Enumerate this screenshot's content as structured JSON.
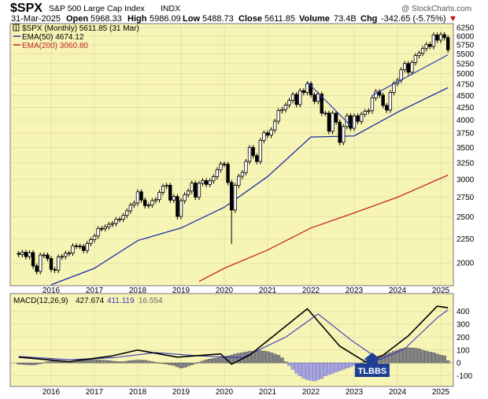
{
  "header": {
    "symbol": "$SPX",
    "name": "S&P 500 Large Cap Index",
    "exchange": "INDX",
    "watermark": "@ StockCharts.com",
    "date": "31-Mar-2025",
    "open_label": "Open",
    "open": "5968.33",
    "high_label": "High",
    "high": "5986.09",
    "low_label": "Low",
    "low": "5488.73",
    "close_label": "Close",
    "close": "5611.85",
    "volume_label": "Volume",
    "volume": "73.4B",
    "chg_label": "Chg",
    "chg": "-342.65 (-5.75%)",
    "chg_arrow": "▼"
  },
  "legend": {
    "price": "$SPX (Monthly) 5611.85 (31 Mar)",
    "ema50": "EMA(50) 4674.12",
    "ema200": "EMA(200) 3060.80"
  },
  "macd_panel": {
    "label": "MACD(12,26,9)",
    "macd": "427.674",
    "signal": "411.119",
    "hist": "16.554",
    "annotation": "TLBBS"
  },
  "colors": {
    "panel_bg": "#f7f5b5",
    "ema50": "#1c2ca8",
    "ema200": "#c42424",
    "trendline": "#2b3cb8",
    "macd_line": "#000000",
    "signal_line": "#3b36c0",
    "hist_bar": "#858585",
    "hist_highlight": "#a9a6de",
    "annotation_bg": "#1f3f95",
    "down_arrow": "#cc0000"
  },
  "chart_data": [
    {
      "type": "candlestick",
      "title": "$SPX S&P 500 Large Cap Index INDX",
      "y_scale": "log",
      "ylim": [
        1820,
        6300
      ],
      "y_ticks": [
        2000,
        2250,
        2500,
        2750,
        3000,
        3250,
        3500,
        3750,
        4000,
        4250,
        4500,
        4750,
        5000,
        5250,
        5500,
        5750,
        6000,
        6250
      ],
      "x_ticks": [
        "2016",
        "2017",
        "2018",
        "2019",
        "2020",
        "2021",
        "2022",
        "2023",
        "2024",
        "2025"
      ],
      "x_start": "2015-04",
      "closes": [
        2085,
        2107,
        2063,
        2104,
        1972,
        1920,
        2079,
        2080,
        2044,
        1940,
        1932,
        2060,
        2065,
        2097,
        2099,
        2174,
        2171,
        2168,
        2126,
        2199,
        2239,
        2279,
        2364,
        2363,
        2384,
        2412,
        2423,
        2470,
        2472,
        2519,
        2575,
        2648,
        2674,
        2823,
        2714,
        2641,
        2648,
        2705,
        2718,
        2816,
        2902,
        2914,
        2712,
        2760,
        2506,
        2704,
        2784,
        2834,
        2946,
        2752,
        2942,
        2980,
        2926,
        2977,
        3038,
        3141,
        3231,
        3226,
        2954,
        2585,
        2912,
        3044,
        3100,
        3271,
        3500,
        3363,
        3270,
        3622,
        3756,
        3714,
        3811,
        3973,
        4181,
        4204,
        4298,
        4395,
        4523,
        4308,
        4605,
        4567,
        4766,
        4516,
        4374,
        4530,
        4132,
        4132,
        3785,
        4130,
        3955,
        3586,
        3872,
        4080,
        3840,
        4077,
        3970,
        4109,
        4169,
        4180,
        4450,
        4589,
        4508,
        4288,
        4194,
        4568,
        4770,
        4846,
        5096,
        5254,
        5036,
        5278,
        5460,
        5522,
        5648,
        5762,
        5705,
        6032,
        5882,
        6041,
        5955,
        5612
      ],
      "series": [
        {
          "name": "$SPX (Monthly)",
          "last": 5611.85
        },
        {
          "name": "EMA(50)",
          "last": 4674.12,
          "x": [
            "2016-01",
            "2017-01",
            "2018-01",
            "2019-01",
            "2020-01",
            "2021-01",
            "2022-01",
            "2023-01",
            "2024-01",
            "2025-03"
          ],
          "values": [
            1800,
            1950,
            2230,
            2370,
            2620,
            3040,
            3680,
            3700,
            4150,
            4674
          ]
        },
        {
          "name": "EMA(200)",
          "last": 3060.8,
          "x": [
            "2019-06",
            "2020-01",
            "2021-01",
            "2022-01",
            "2023-01",
            "2024-01",
            "2025-03"
          ],
          "values": [
            1830,
            1950,
            2130,
            2370,
            2550,
            2750,
            3061
          ]
        }
      ],
      "trendlines": [
        {
          "from": [
            "2021-12",
            4800
          ],
          "to": [
            "2022-12",
            3890
          ]
        },
        {
          "from": [
            "2023-06",
            4500
          ],
          "to": [
            "2025-03",
            5480
          ]
        }
      ]
    },
    {
      "type": "macd",
      "ylim": [
        -170,
        520
      ],
      "y_ticks": [
        -100,
        0,
        100,
        200,
        300,
        400
      ],
      "x_ticks": [
        "2016",
        "2017",
        "2018",
        "2019",
        "2020",
        "2021",
        "2022",
        "2023",
        "2024",
        "2025"
      ],
      "macd": [
        {
          "x": "2015-04",
          "y": 45
        },
        {
          "x": "2016-06",
          "y": 10
        },
        {
          "x": "2017-06",
          "y": 55
        },
        {
          "x": "2018-01",
          "y": 100
        },
        {
          "x": "2018-12",
          "y": 45
        },
        {
          "x": "2019-12",
          "y": 70
        },
        {
          "x": "2020-03",
          "y": -10
        },
        {
          "x": "2020-08",
          "y": 60
        },
        {
          "x": "2021-04",
          "y": 240
        },
        {
          "x": "2021-12",
          "y": 420
        },
        {
          "x": "2022-09",
          "y": 130
        },
        {
          "x": "2023-04",
          "y": 10
        },
        {
          "x": "2023-09",
          "y": 60
        },
        {
          "x": "2024-04",
          "y": 210
        },
        {
          "x": "2024-12",
          "y": 440
        },
        {
          "x": "2025-03",
          "y": 428
        }
      ],
      "signal": [
        {
          "x": "2015-04",
          "y": 50
        },
        {
          "x": "2016-06",
          "y": 25
        },
        {
          "x": "2017-06",
          "y": 40
        },
        {
          "x": "2018-06",
          "y": 80
        },
        {
          "x": "2019-06",
          "y": 55
        },
        {
          "x": "2020-06",
          "y": 40
        },
        {
          "x": "2021-06",
          "y": 200
        },
        {
          "x": "2022-03",
          "y": 380
        },
        {
          "x": "2022-12",
          "y": 180
        },
        {
          "x": "2023-08",
          "y": 25
        },
        {
          "x": "2024-03",
          "y": 110
        },
        {
          "x": "2024-12",
          "y": 350
        },
        {
          "x": "2025-03",
          "y": 411
        }
      ],
      "histogram": [
        -10,
        -12,
        -14,
        -15,
        -16,
        -12,
        -6,
        2,
        10,
        15,
        18,
        20,
        15,
        8,
        4,
        6,
        10,
        14,
        20,
        24,
        26,
        28,
        25,
        22,
        20,
        18,
        15,
        12,
        10,
        10,
        14,
        18,
        20,
        22,
        22,
        20,
        15,
        10,
        5,
        0,
        -5,
        -10,
        -15,
        -20,
        -30,
        -40,
        -35,
        -25,
        -15,
        -5,
        5,
        15,
        25,
        30,
        35,
        40,
        45,
        50,
        55,
        60,
        70,
        75,
        80,
        85,
        90,
        90,
        92,
        95,
        92,
        88,
        80,
        70,
        60,
        40,
        10,
        -20,
        -50,
        -80,
        -100,
        -120,
        -130,
        -135,
        -140,
        -130,
        -120,
        -100,
        -90,
        -80,
        -70,
        -60,
        -50,
        -40,
        -30,
        -20,
        -10,
        0,
        10,
        20,
        30,
        40,
        50,
        60,
        70,
        80,
        90,
        100,
        110,
        115,
        118,
        117,
        115,
        110,
        100,
        92,
        85,
        80,
        70,
        60,
        55,
        17
      ],
      "annotation": {
        "text": "TLBBS",
        "x": "2023-06"
      }
    }
  ]
}
